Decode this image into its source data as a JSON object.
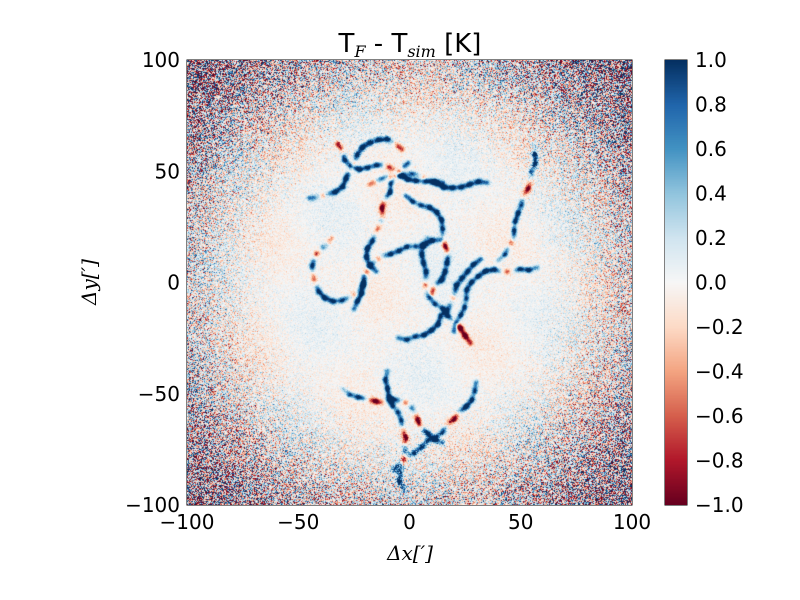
{
  "chart_data": {
    "type": "heatmap",
    "title": {
      "main_1": "T",
      "sub_1": "F",
      "main_2": " - T",
      "sub_2": "sim",
      "suffix": " [K]"
    },
    "xlabel": "Δx[′]",
    "ylabel": "Δy[′]",
    "xlim": [
      -100,
      100
    ],
    "ylim": [
      -100,
      100
    ],
    "x_ticks": [
      -100,
      -50,
      0,
      50,
      100
    ],
    "y_ticks": [
      -100,
      -50,
      0,
      50,
      100
    ],
    "x_tick_labels": [
      "−100",
      "−50",
      "0",
      "50",
      "100"
    ],
    "y_tick_labels": [
      "−100",
      "−50",
      "0",
      "50",
      "100"
    ],
    "colorbar": {
      "min": -1.0,
      "max": 1.0,
      "ticks": [
        -1.0,
        -0.8,
        -0.6,
        -0.4,
        -0.2,
        0.0,
        0.2,
        0.4,
        0.6,
        0.8,
        1.0
      ],
      "tick_labels": [
        "−1.0",
        "−0.8",
        "−0.6",
        "−0.4",
        "−0.2",
        "0.0",
        "0.2",
        "0.4",
        "0.6",
        "0.8",
        "1.0"
      ],
      "colormap": "RdBu",
      "stops": [
        "#67001f",
        "#b2182b",
        "#d6604d",
        "#f4a582",
        "#fddbc7",
        "#f7f7f7",
        "#d1e5f0",
        "#92c5de",
        "#4393c3",
        "#2166ac",
        "#053061"
      ]
    },
    "grid": false
  }
}
